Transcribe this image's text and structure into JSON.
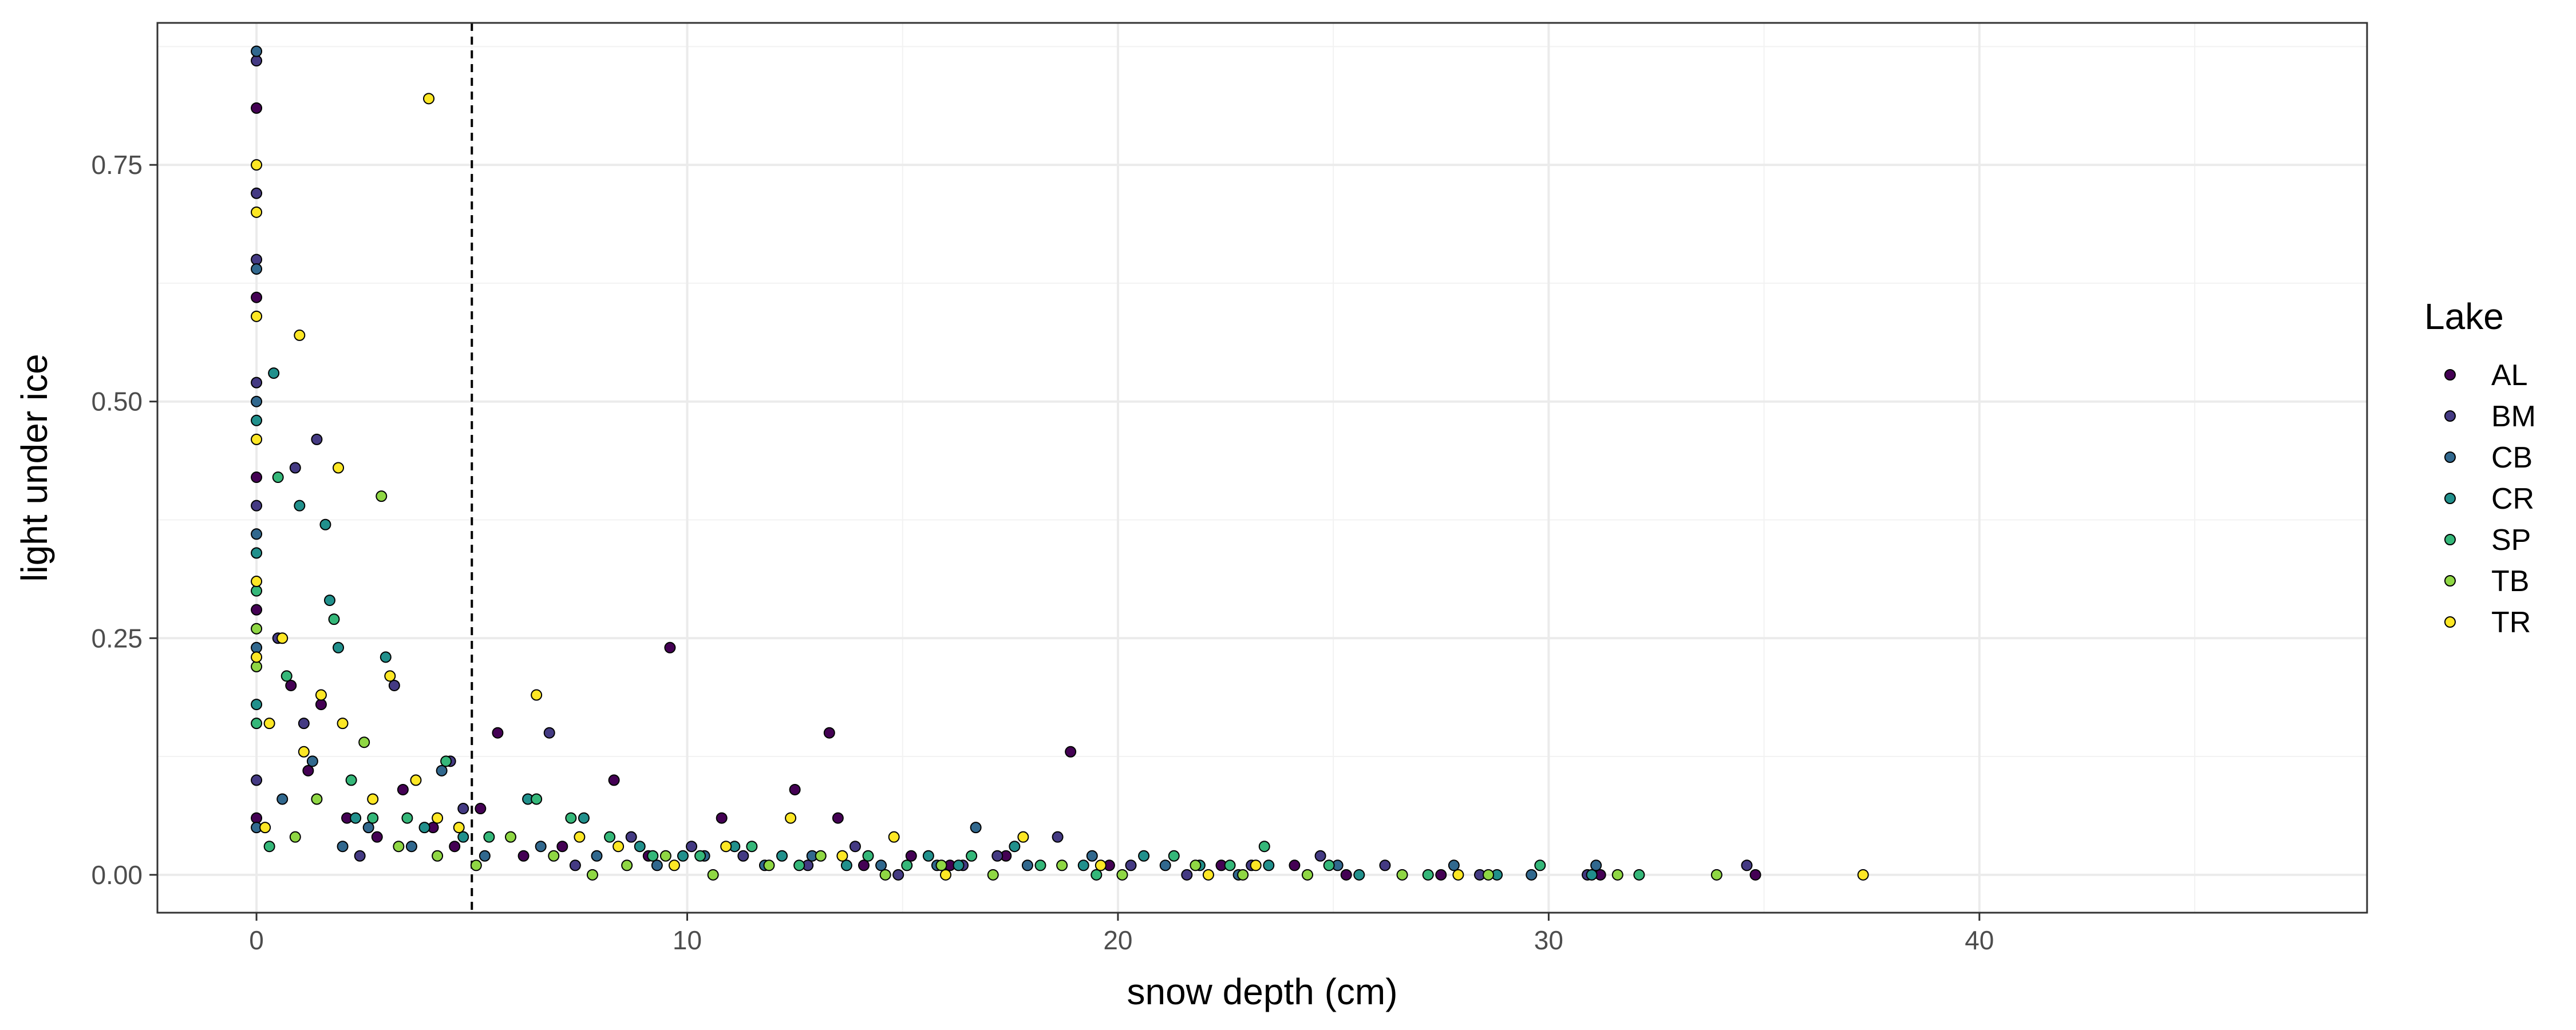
{
  "chart_data": {
    "type": "scatter",
    "title": "",
    "xlabel": "snow depth (cm)",
    "ylabel": "light under ice",
    "xlim": [
      -2.3,
      49
    ],
    "ylim": [
      -0.04,
      0.9
    ],
    "x_ticks": [
      0,
      10,
      20,
      30,
      40
    ],
    "x_tick_labels": [
      "0",
      "10",
      "20",
      "30",
      "40"
    ],
    "y_ticks": [
      0,
      0.25,
      0.5,
      0.75
    ],
    "y_tick_labels": [
      "0.00",
      "0.25",
      "0.50",
      "0.75"
    ],
    "grid": true,
    "reference_line": {
      "orientation": "vertical",
      "x": 5,
      "style": "dashed"
    },
    "legend": {
      "title": "Lake",
      "position": "right"
    },
    "series": [
      {
        "name": "AL",
        "color": "#440154",
        "points": [
          [
            0,
            0.81
          ],
          [
            0,
            0.61
          ],
          [
            0,
            0.42
          ],
          [
            0,
            0.28
          ],
          [
            0,
            0.06
          ],
          [
            0.8,
            0.2
          ],
          [
            1.2,
            0.11
          ],
          [
            1.5,
            0.18
          ],
          [
            2.1,
            0.06
          ],
          [
            2.8,
            0.04
          ],
          [
            3.4,
            0.09
          ],
          [
            4.1,
            0.05
          ],
          [
            4.6,
            0.03
          ],
          [
            5.2,
            0.07
          ],
          [
            5.6,
            0.15
          ],
          [
            6.2,
            0.02
          ],
          [
            7.1,
            0.03
          ],
          [
            8.3,
            0.1
          ],
          [
            9.1,
            0.02
          ],
          [
            9.6,
            0.24
          ],
          [
            10.8,
            0.06
          ],
          [
            12.5,
            0.09
          ],
          [
            13.3,
            0.15
          ],
          [
            13.5,
            0.06
          ],
          [
            14.1,
            0.01
          ],
          [
            15.2,
            0.02
          ],
          [
            16.1,
            0.01
          ],
          [
            17.4,
            0.02
          ],
          [
            18.9,
            0.13
          ],
          [
            19.8,
            0.01
          ],
          [
            22.4,
            0.01
          ],
          [
            24.1,
            0.01
          ],
          [
            25.3,
            0.0
          ],
          [
            27.5,
            0.0
          ],
          [
            31.2,
            0.0
          ],
          [
            34.8,
            0.0
          ]
        ]
      },
      {
        "name": "BM",
        "color": "#443A83",
        "points": [
          [
            0,
            0.86
          ],
          [
            0,
            0.72
          ],
          [
            0,
            0.65
          ],
          [
            0,
            0.52
          ],
          [
            0,
            0.39
          ],
          [
            0,
            0.1
          ],
          [
            0.5,
            0.25
          ],
          [
            0.9,
            0.43
          ],
          [
            1.4,
            0.46
          ],
          [
            1.1,
            0.16
          ],
          [
            2.4,
            0.02
          ],
          [
            3.2,
            0.2
          ],
          [
            4.5,
            0.12
          ],
          [
            4.8,
            0.07
          ],
          [
            6.8,
            0.15
          ],
          [
            7.4,
            0.01
          ],
          [
            8.7,
            0.04
          ],
          [
            10.1,
            0.03
          ],
          [
            11.3,
            0.02
          ],
          [
            12.8,
            0.01
          ],
          [
            13.9,
            0.03
          ],
          [
            14.9,
            0.0
          ],
          [
            16.4,
            0.01
          ],
          [
            17.2,
            0.02
          ],
          [
            18.6,
            0.04
          ],
          [
            20.3,
            0.01
          ],
          [
            21.6,
            0.0
          ],
          [
            23.1,
            0.01
          ],
          [
            24.7,
            0.02
          ],
          [
            26.2,
            0.01
          ],
          [
            28.4,
            0.0
          ],
          [
            30.9,
            0.0
          ],
          [
            34.6,
            0.01
          ]
        ]
      },
      {
        "name": "CB",
        "color": "#31688E",
        "points": [
          [
            0,
            0.87
          ],
          [
            0,
            0.64
          ],
          [
            0,
            0.5
          ],
          [
            0,
            0.36
          ],
          [
            0,
            0.24
          ],
          [
            0,
            0.05
          ],
          [
            0.6,
            0.08
          ],
          [
            1.3,
            0.12
          ],
          [
            2.0,
            0.03
          ],
          [
            2.6,
            0.05
          ],
          [
            3.6,
            0.03
          ],
          [
            4.3,
            0.11
          ],
          [
            5.3,
            0.02
          ],
          [
            6.6,
            0.03
          ],
          [
            7.9,
            0.02
          ],
          [
            9.3,
            0.01
          ],
          [
            10.4,
            0.02
          ],
          [
            11.8,
            0.01
          ],
          [
            12.9,
            0.02
          ],
          [
            14.5,
            0.01
          ],
          [
            15.8,
            0.01
          ],
          [
            16.7,
            0.05
          ],
          [
            17.9,
            0.01
          ],
          [
            19.4,
            0.02
          ],
          [
            21.1,
            0.01
          ],
          [
            22.8,
            0.0
          ],
          [
            25.1,
            0.01
          ],
          [
            27.8,
            0.01
          ],
          [
            29.6,
            0.0
          ],
          [
            31.1,
            0.01
          ]
        ]
      },
      {
        "name": "CR",
        "color": "#21908C",
        "points": [
          [
            0,
            0.48
          ],
          [
            0,
            0.34
          ],
          [
            0,
            0.18
          ],
          [
            0.4,
            0.53
          ],
          [
            1.0,
            0.39
          ],
          [
            1.6,
            0.37
          ],
          [
            1.7,
            0.29
          ],
          [
            1.9,
            0.24
          ],
          [
            3.0,
            0.23
          ],
          [
            2.3,
            0.06
          ],
          [
            3.9,
            0.05
          ],
          [
            4.8,
            0.04
          ],
          [
            6.3,
            0.08
          ],
          [
            7.6,
            0.06
          ],
          [
            8.9,
            0.03
          ],
          [
            9.9,
            0.02
          ],
          [
            11.1,
            0.03
          ],
          [
            12.2,
            0.02
          ],
          [
            13.7,
            0.01
          ],
          [
            15.6,
            0.02
          ],
          [
            16.3,
            0.01
          ],
          [
            17.6,
            0.03
          ],
          [
            19.2,
            0.01
          ],
          [
            20.6,
            0.02
          ],
          [
            21.9,
            0.01
          ],
          [
            23.5,
            0.01
          ],
          [
            25.6,
            0.0
          ],
          [
            28.8,
            0.0
          ],
          [
            31.0,
            0.0
          ]
        ]
      },
      {
        "name": "SP",
        "color": "#35B779",
        "points": [
          [
            0,
            0.3
          ],
          [
            0,
            0.16
          ],
          [
            0.5,
            0.42
          ],
          [
            0.3,
            0.03
          ],
          [
            0.7,
            0.21
          ],
          [
            1.8,
            0.27
          ],
          [
            2.2,
            0.1
          ],
          [
            2.7,
            0.06
          ],
          [
            3.5,
            0.06
          ],
          [
            4.4,
            0.12
          ],
          [
            5.4,
            0.04
          ],
          [
            6.5,
            0.08
          ],
          [
            7.3,
            0.06
          ],
          [
            8.2,
            0.04
          ],
          [
            9.2,
            0.02
          ],
          [
            10.3,
            0.02
          ],
          [
            11.5,
            0.03
          ],
          [
            12.6,
            0.01
          ],
          [
            14.2,
            0.02
          ],
          [
            15.1,
            0.01
          ],
          [
            16.6,
            0.02
          ],
          [
            18.2,
            0.01
          ],
          [
            19.5,
            0.0
          ],
          [
            21.3,
            0.02
          ],
          [
            22.6,
            0.01
          ],
          [
            23.4,
            0.03
          ],
          [
            24.9,
            0.01
          ],
          [
            27.2,
            0.0
          ],
          [
            29.8,
            0.01
          ],
          [
            32.1,
            0.0
          ]
        ]
      },
      {
        "name": "TB",
        "color": "#8FD744",
        "points": [
          [
            0,
            0.26
          ],
          [
            0,
            0.22
          ],
          [
            0.9,
            0.04
          ],
          [
            1.4,
            0.08
          ],
          [
            2.9,
            0.4
          ],
          [
            2.5,
            0.14
          ],
          [
            3.3,
            0.03
          ],
          [
            4.2,
            0.02
          ],
          [
            5.1,
            0.01
          ],
          [
            5.9,
            0.04
          ],
          [
            6.9,
            0.02
          ],
          [
            7.8,
            0.0
          ],
          [
            8.6,
            0.01
          ],
          [
            9.5,
            0.02
          ],
          [
            10.6,
            0.0
          ],
          [
            11.9,
            0.01
          ],
          [
            13.1,
            0.02
          ],
          [
            14.6,
            0.0
          ],
          [
            15.9,
            0.01
          ],
          [
            17.1,
            0.0
          ],
          [
            18.7,
            0.01
          ],
          [
            20.1,
            0.0
          ],
          [
            21.8,
            0.01
          ],
          [
            22.9,
            0.0
          ],
          [
            24.4,
            0.0
          ],
          [
            26.6,
            0.0
          ],
          [
            28.6,
            0.0
          ],
          [
            31.6,
            0.0
          ],
          [
            33.9,
            0.0
          ]
        ]
      },
      {
        "name": "TR",
        "color": "#FDE725",
        "points": [
          [
            0,
            0.75
          ],
          [
            0,
            0.7
          ],
          [
            0,
            0.59
          ],
          [
            0,
            0.46
          ],
          [
            0,
            0.31
          ],
          [
            0,
            0.23
          ],
          [
            0.3,
            0.16
          ],
          [
            0.2,
            0.05
          ],
          [
            0.6,
            0.25
          ],
          [
            1.0,
            0.57
          ],
          [
            1.1,
            0.13
          ],
          [
            1.5,
            0.19
          ],
          [
            1.9,
            0.43
          ],
          [
            2.0,
            0.16
          ],
          [
            2.7,
            0.08
          ],
          [
            3.1,
            0.21
          ],
          [
            3.7,
            0.1
          ],
          [
            4.0,
            0.82
          ],
          [
            4.2,
            0.06
          ],
          [
            4.7,
            0.05
          ],
          [
            6.5,
            0.19
          ],
          [
            7.5,
            0.04
          ],
          [
            8.4,
            0.03
          ],
          [
            9.7,
            0.01
          ],
          [
            10.9,
            0.03
          ],
          [
            12.4,
            0.06
          ],
          [
            13.6,
            0.02
          ],
          [
            14.8,
            0.04
          ],
          [
            16.0,
            0.0
          ],
          [
            17.8,
            0.04
          ],
          [
            19.6,
            0.01
          ],
          [
            22.1,
            0.0
          ],
          [
            23.2,
            0.01
          ],
          [
            27.9,
            0.0
          ],
          [
            37.3,
            0.0
          ]
        ]
      }
    ]
  }
}
